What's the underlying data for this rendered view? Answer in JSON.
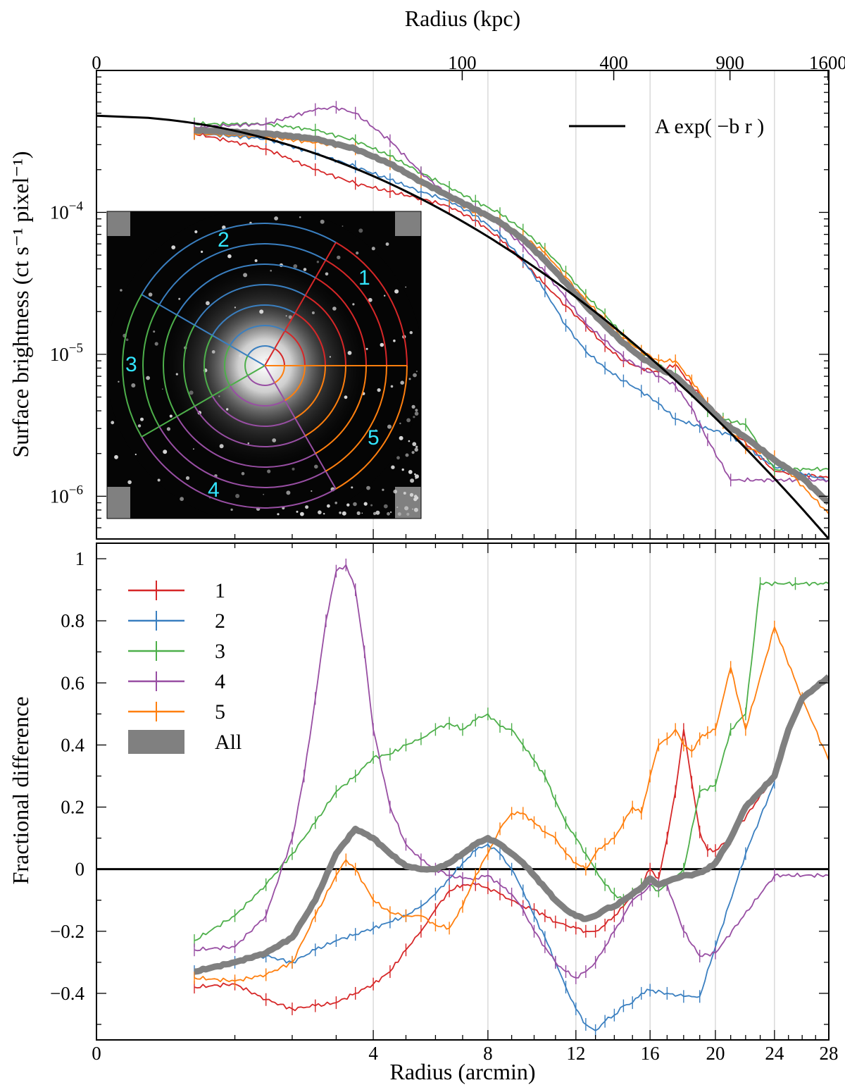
{
  "chart_data": [
    {
      "type": "line",
      "panel": "top",
      "xlabel_top": "Radius (kpc)",
      "top_ticks": [
        "0",
        "100",
        "400",
        "900",
        "1600"
      ],
      "top_ticks_kpc": [
        0,
        100,
        400,
        900,
        1600
      ],
      "ylabel": "Surface brightness (ct s⁻¹ pixel⁻¹)",
      "yscale": "log",
      "ylim": [
        5e-07,
        0.001
      ],
      "ytick_values": [
        1e-06,
        1e-05,
        0.0001
      ],
      "ytick_exponents": [
        "−6",
        "−5",
        "−4"
      ],
      "ytick_base": "10",
      "xscale": "sqrt",
      "xlim": [
        0,
        28
      ],
      "legend": {
        "position": "top-right",
        "label": "A exp( −b r )"
      },
      "model": {
        "type": "exponential",
        "y_at_0": 0.00048,
        "y_at_28": 5e-07
      },
      "series": [
        {
          "name": "1",
          "color": "#d62728",
          "x": [
            0.5,
            1.5,
            2.5,
            3.5,
            4.5,
            5.5,
            6.5,
            7.5,
            8.5,
            9.5,
            10.5,
            11.5,
            12.5,
            13.5,
            14.5,
            15.5,
            16.5,
            17.5,
            18.5,
            19.5,
            21.0,
            24.0,
            28.0
          ],
          "y": [
            0.00036,
            0.00028,
            0.0002,
            0.00016,
            0.00014,
            0.000125,
            0.00011,
            8.8e-05,
            6.5e-05,
            4.5e-05,
            3.1e-05,
            2.2e-05,
            1.6e-05,
            1.15e-05,
            9e-06,
            8e-06,
            7.5e-06,
            8.5e-06,
            6e-06,
            4.5e-06,
            3e-06,
            1.5e-06,
            1.35e-06
          ]
        },
        {
          "name": "2",
          "color": "#3a7fc0",
          "x": [
            0.5,
            1.5,
            2.5,
            3.5,
            4.5,
            5.5,
            6.5,
            7.5,
            8.5,
            9.5,
            10.5,
            11.5,
            12.5,
            13.5,
            14.5,
            15.5,
            16.5,
            17.5,
            19.0,
            21.0,
            24.0,
            28.0
          ],
          "y": [
            0.00036,
            0.00033,
            0.00026,
            0.00021,
            0.00017,
            0.00014,
            0.00012,
            9.5e-05,
            7e-05,
            4.6e-05,
            2.8e-05,
            1.6e-05,
            1.05e-05,
            8e-06,
            6.5e-06,
            5.5e-06,
            4.5e-06,
            3.5e-06,
            3.1e-06,
            2.7e-06,
            1.6e-06,
            1.3e-06
          ]
        },
        {
          "name": "3",
          "color": "#4daf4a",
          "x": [
            0.5,
            1.5,
            2.5,
            3.5,
            4.5,
            5.5,
            6.5,
            7.5,
            8.5,
            9.5,
            10.5,
            11.5,
            12.5,
            13.5,
            14.5,
            15.5,
            16.5,
            17.5,
            18.5,
            19.5,
            20.5,
            22.0,
            24.0,
            28.0
          ],
          "y": [
            0.00042,
            0.00042,
            0.00038,
            0.00032,
            0.00025,
            0.00019,
            0.00015,
            0.00012,
            9.8e-05,
            7.5e-05,
            5.5e-05,
            3.8e-05,
            2.6e-05,
            1.9e-05,
            1.35e-05,
            1.05e-05,
            8.5e-06,
            7e-06,
            5.5e-06,
            4e-06,
            3.5e-06,
            3.2e-06,
            1.55e-06,
            1.55e-06
          ]
        },
        {
          "name": "4",
          "color": "#984ea3",
          "x": [
            0.5,
            1.5,
            2.5,
            3.0,
            3.5,
            4.5,
            5.5,
            6.5,
            7.5,
            8.5,
            9.5,
            10.5,
            11.5,
            12.5,
            13.5,
            14.5,
            15.5,
            16.5,
            17.5,
            18.5,
            19.5,
            21.0,
            28.0
          ],
          "y": [
            0.0004,
            0.00042,
            0.00053,
            0.00055,
            0.0005,
            0.00032,
            0.00019,
            0.00013,
            0.000105,
            8.2e-05,
            5.8e-05,
            3.8e-05,
            2.5e-05,
            1.65e-05,
            1.25e-05,
            9.5e-06,
            8e-06,
            7e-06,
            6e-06,
            4.2e-06,
            2.5e-06,
            1.3e-06,
            1.3e-06
          ]
        },
        {
          "name": "5",
          "color": "#ff7f0e",
          "x": [
            0.5,
            1.5,
            2.5,
            3.5,
            4.5,
            5.5,
            6.5,
            7.5,
            8.5,
            9.5,
            10.5,
            11.5,
            12.5,
            13.5,
            14.5,
            15.5,
            16.5,
            17.5,
            18.5,
            19.5,
            20.5,
            22.0,
            24.0,
            28.0
          ],
          "y": [
            0.00036,
            0.00034,
            0.00031,
            0.00028,
            0.00022,
            0.000165,
            0.000125,
            0.0001,
            8.7e-05,
            6.8e-05,
            5.2e-05,
            3.5e-05,
            2.4e-05,
            1.75e-05,
            1.3e-05,
            1.05e-05,
            9e-06,
            9e-06,
            6.5e-06,
            4.5e-06,
            3.3e-06,
            2.2e-06,
            1.9e-06,
            7.5e-07
          ]
        },
        {
          "name": "All",
          "color": "#808080",
          "x": [
            0.5,
            1.5,
            2.5,
            3.5,
            4.5,
            5.5,
            6.5,
            7.5,
            8.5,
            9.5,
            10.5,
            11.5,
            12.5,
            13.5,
            14.5,
            15.5,
            16.5,
            17.5,
            18.5,
            19.5,
            20.5,
            22.0,
            24.0,
            26.0,
            28.0
          ],
          "y": [
            0.00038,
            0.00036,
            0.00033,
            0.00028,
            0.00022,
            0.000165,
            0.00013,
            0.000105,
            8.5e-05,
            6.5e-05,
            4.6e-05,
            3.2e-05,
            2.2e-05,
            1.6e-05,
            1.2e-05,
            9.5e-06,
            8e-06,
            7e-06,
            5.5e-06,
            4.3e-06,
            3.3e-06,
            2.6e-06,
            1.8e-06,
            1.35e-06,
            9e-07
          ]
        }
      ]
    },
    {
      "type": "line",
      "panel": "bottom",
      "xlabel": "Radius (arcmin)",
      "xscale": "sqrt",
      "xlim": [
        0,
        28
      ],
      "xticks": [
        0,
        4,
        8,
        12,
        16,
        20,
        24,
        28
      ],
      "ylabel": "Fractional difference",
      "ylim": [
        -0.55,
        1.05
      ],
      "yticks": [
        -0.4,
        -0.2,
        0,
        0.2,
        0.4,
        0.6,
        0.8,
        1
      ],
      "ytick_labels": [
        "−0.4",
        "−0.2",
        "0",
        "0.2",
        "0.4",
        "0.6",
        "0.8",
        "1"
      ],
      "legend": {
        "position": "top-left",
        "entries": [
          "1",
          "2",
          "3",
          "4",
          "5",
          "All"
        ]
      },
      "vertical_lines_arcmin": [
        4,
        8,
        12,
        16,
        20,
        24
      ],
      "series": [
        {
          "name": "1",
          "color": "#d62728",
          "x": [
            0.5,
            1.0,
            1.5,
            2.0,
            2.5,
            3.0,
            3.5,
            4.0,
            4.5,
            5.0,
            5.5,
            6.0,
            6.5,
            7.0,
            7.5,
            8.0,
            8.5,
            9.0,
            9.5,
            10.0,
            10.5,
            11.0,
            11.5,
            12.0,
            12.5,
            13.0,
            13.5,
            14.0,
            14.5,
            15.0,
            15.5,
            16.0,
            16.5,
            17.0,
            17.5,
            18.0,
            18.5,
            19.0,
            19.5,
            20.0,
            21.0,
            24.0
          ],
          "y": [
            -0.38,
            -0.37,
            -0.42,
            -0.45,
            -0.44,
            -0.43,
            -0.4,
            -0.37,
            -0.33,
            -0.26,
            -0.2,
            -0.13,
            -0.07,
            -0.05,
            -0.05,
            -0.06,
            -0.08,
            -0.1,
            -0.12,
            -0.13,
            -0.15,
            -0.17,
            -0.18,
            -0.19,
            -0.2,
            -0.2,
            -0.18,
            -0.15,
            -0.12,
            -0.08,
            -0.05,
            0.0,
            -0.03,
            0.1,
            0.25,
            0.45,
            0.28,
            0.12,
            0.06,
            0.06,
            0.1,
            0.3
          ]
        },
        {
          "name": "2",
          "color": "#3a7fc0",
          "x": [
            0.5,
            1.0,
            1.5,
            2.0,
            2.5,
            3.0,
            3.5,
            4.0,
            4.5,
            5.0,
            5.5,
            6.0,
            6.5,
            7.0,
            7.5,
            8.0,
            8.5,
            9.0,
            9.5,
            10.0,
            10.5,
            11.0,
            11.5,
            12.0,
            12.5,
            13.0,
            13.5,
            14.0,
            14.5,
            15.0,
            15.5,
            16.0,
            17.0,
            18.0,
            19.0,
            20.0,
            22.0,
            24.0
          ],
          "y": [
            -0.33,
            -0.3,
            -0.28,
            -0.3,
            -0.26,
            -0.23,
            -0.21,
            -0.19,
            -0.17,
            -0.15,
            -0.12,
            -0.08,
            -0.03,
            0.02,
            0.06,
            0.08,
            0.05,
            0.0,
            -0.07,
            -0.15,
            -0.22,
            -0.3,
            -0.38,
            -0.45,
            -0.5,
            -0.52,
            -0.49,
            -0.47,
            -0.44,
            -0.43,
            -0.4,
            -0.39,
            -0.4,
            -0.41,
            -0.41,
            -0.25,
            0.05,
            0.28
          ]
        },
        {
          "name": "3",
          "color": "#4daf4a",
          "x": [
            0.5,
            1.0,
            1.5,
            2.0,
            2.5,
            3.0,
            3.5,
            4.0,
            4.5,
            5.0,
            5.5,
            6.0,
            6.5,
            7.0,
            7.5,
            8.0,
            8.5,
            9.0,
            9.5,
            10.0,
            10.5,
            11.0,
            11.5,
            12.0,
            12.5,
            13.0,
            13.5,
            14.0,
            14.5,
            15.0,
            15.5,
            16.0,
            16.5,
            17.0,
            18.0,
            19.0,
            20.0,
            21.0,
            22.0,
            23.0,
            25.5,
            28.0
          ],
          "y": [
            -0.23,
            -0.15,
            -0.05,
            0.05,
            0.15,
            0.25,
            0.3,
            0.36,
            0.37,
            0.4,
            0.42,
            0.45,
            0.47,
            0.45,
            0.48,
            0.5,
            0.46,
            0.45,
            0.4,
            0.35,
            0.3,
            0.22,
            0.15,
            0.1,
            0.05,
            0.0,
            -0.05,
            -0.08,
            -0.1,
            -0.08,
            -0.05,
            -0.05,
            -0.07,
            -0.05,
            0.0,
            0.25,
            0.27,
            0.45,
            0.5,
            0.92,
            0.92,
            0.92
          ]
        },
        {
          "name": "4",
          "color": "#984ea3",
          "x": [
            0.5,
            1.0,
            1.5,
            2.0,
            2.25,
            2.5,
            2.75,
            3.0,
            3.25,
            3.5,
            3.75,
            4.0,
            4.5,
            5.0,
            5.5,
            6.0,
            6.5,
            7.0,
            7.5,
            8.0,
            8.5,
            9.0,
            9.5,
            10.0,
            10.5,
            11.0,
            11.5,
            12.0,
            12.5,
            13.0,
            13.5,
            14.0,
            14.5,
            15.0,
            15.5,
            16.0,
            16.5,
            17.0,
            18.0,
            19.0,
            20.0,
            24.0,
            28.0
          ],
          "y": [
            -0.26,
            -0.25,
            -0.15,
            0.1,
            0.3,
            0.55,
            0.8,
            0.96,
            0.98,
            0.9,
            0.7,
            0.45,
            0.2,
            0.08,
            0.03,
            0.0,
            -0.02,
            -0.03,
            -0.03,
            -0.02,
            -0.05,
            -0.08,
            -0.13,
            -0.2,
            -0.25,
            -0.3,
            -0.33,
            -0.35,
            -0.33,
            -0.3,
            -0.25,
            -0.2,
            -0.15,
            -0.1,
            -0.08,
            -0.05,
            -0.05,
            -0.05,
            -0.2,
            -0.28,
            -0.27,
            -0.02,
            -0.02
          ]
        },
        {
          "name": "5",
          "color": "#ff7f0e",
          "x": [
            0.5,
            1.0,
            1.5,
            2.0,
            2.5,
            3.0,
            3.25,
            3.5,
            4.0,
            4.5,
            5.0,
            5.5,
            6.0,
            6.5,
            7.0,
            7.5,
            8.0,
            8.5,
            9.0,
            9.5,
            10.0,
            10.5,
            11.0,
            11.5,
            12.0,
            12.5,
            13.0,
            13.5,
            14.0,
            14.5,
            15.0,
            15.5,
            16.0,
            16.5,
            17.0,
            17.5,
            18.0,
            18.5,
            19.0,
            19.5,
            20.0,
            21.0,
            22.0,
            24.0,
            26.0,
            28.0
          ],
          "y": [
            -0.35,
            -0.36,
            -0.34,
            -0.3,
            -0.15,
            -0.02,
            0.03,
            0.0,
            -0.1,
            -0.14,
            -0.15,
            -0.15,
            -0.18,
            -0.19,
            -0.12,
            -0.02,
            0.05,
            0.13,
            0.18,
            0.18,
            0.15,
            0.12,
            0.1,
            0.05,
            0.02,
            0.0,
            0.05,
            0.08,
            0.1,
            0.15,
            0.2,
            0.18,
            0.3,
            0.4,
            0.42,
            0.45,
            0.4,
            0.38,
            0.42,
            0.44,
            0.45,
            0.65,
            0.45,
            0.78,
            0.55,
            0.35
          ]
        },
        {
          "name": "All",
          "color": "#808080",
          "x": [
            0.5,
            1.0,
            1.5,
            2.0,
            2.5,
            3.0,
            3.5,
            4.0,
            4.5,
            5.0,
            5.5,
            6.0,
            6.5,
            7.0,
            7.5,
            8.0,
            8.5,
            9.0,
            9.5,
            10.0,
            10.5,
            11.0,
            11.5,
            12.0,
            12.5,
            13.0,
            13.5,
            14.0,
            14.5,
            15.0,
            15.5,
            16.0,
            16.5,
            17.0,
            17.5,
            18.0,
            18.5,
            19.0,
            19.5,
            20.0,
            21.0,
            22.0,
            23.0,
            24.0,
            25.0,
            26.0,
            28.0
          ],
          "y": [
            -0.33,
            -0.3,
            -0.27,
            -0.22,
            -0.1,
            0.05,
            0.13,
            0.1,
            0.05,
            0.01,
            0.0,
            0.0,
            0.02,
            0.05,
            0.08,
            0.1,
            0.08,
            0.05,
            0.02,
            -0.02,
            -0.06,
            -0.1,
            -0.13,
            -0.15,
            -0.16,
            -0.15,
            -0.13,
            -0.12,
            -0.1,
            -0.08,
            -0.06,
            -0.03,
            -0.05,
            -0.04,
            -0.03,
            -0.02,
            -0.02,
            -0.01,
            0.0,
            0.02,
            0.1,
            0.2,
            0.25,
            0.3,
            0.45,
            0.55,
            0.62
          ]
        }
      ]
    }
  ],
  "inset": {
    "sector_labels": [
      "1",
      "2",
      "3",
      "4",
      "5"
    ],
    "sector_colors": [
      "#d62728",
      "#3a7fc0",
      "#4daf4a",
      "#984ea3",
      "#ff7f0e"
    ],
    "label_color": "#33e6ff"
  }
}
